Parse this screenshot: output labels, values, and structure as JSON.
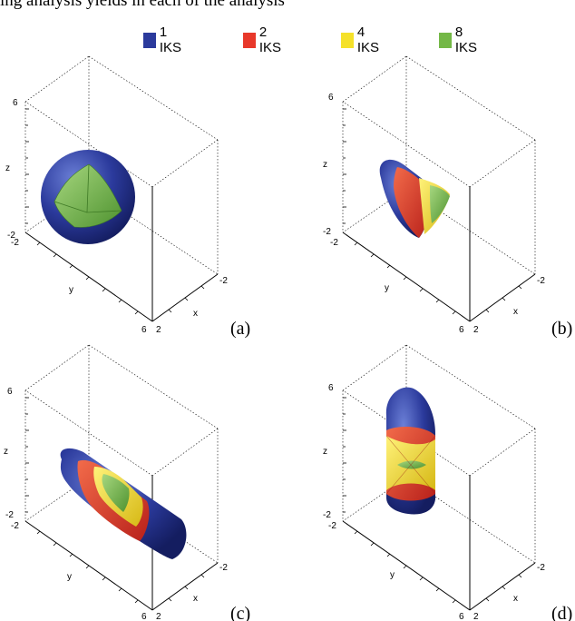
{
  "top_text": "ing analysis yields in each of the analysis",
  "legend": [
    {
      "label": "1 IKS",
      "color": "#2b3a9c"
    },
    {
      "label": "2 IKS",
      "color": "#e8382a"
    },
    {
      "label": "4 IKS",
      "color": "#f5e12a"
    },
    {
      "label": "8 IKS",
      "color": "#74b847"
    }
  ],
  "axis_labels": {
    "x": "x",
    "y": "y",
    "z": "z"
  },
  "tick_labels": {
    "z_max": "6",
    "z_min": "-2",
    "y_min": "-2",
    "y_max": "6",
    "x_min": "-2",
    "x_max": "2"
  },
  "panels": [
    {
      "id": "a",
      "letter": "(a)"
    },
    {
      "id": "b",
      "letter": "(b)"
    },
    {
      "id": "c",
      "letter": "(c)"
    },
    {
      "id": "d",
      "letter": "(d)"
    }
  ],
  "colors": {
    "blue": "#2b3a9c",
    "red": "#e8382a",
    "yellow": "#f5e12a",
    "green": "#74b847"
  }
}
